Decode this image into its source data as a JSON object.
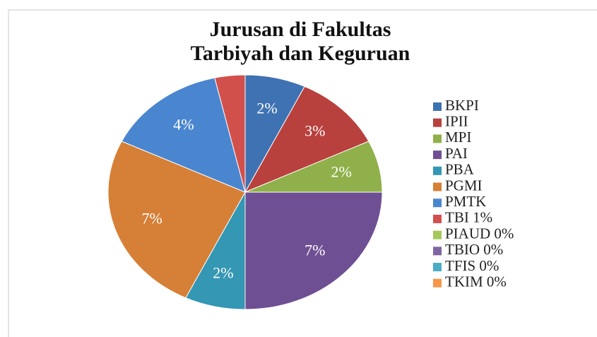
{
  "chart_data": {
    "type": "pie",
    "title": [
      "Jurusan di Fakultas",
      "Tarbiyah dan Keguruan"
    ],
    "categories": [
      "BKPI",
      "IPII",
      "MPI",
      "PAI",
      "PBA",
      "PGMI",
      "PMTK",
      "TBI 1%",
      "PIAUD 0%",
      "TBIO 0%",
      "TFIS 0%",
      "TKIM 0%"
    ],
    "values": [
      2,
      3,
      2,
      7,
      2,
      7,
      4,
      1,
      0,
      0,
      0,
      0
    ],
    "value_labels": [
      "2%",
      "3%",
      "2%",
      "7%",
      "2%",
      "7%",
      "4%",
      null,
      null,
      null,
      null,
      null
    ],
    "colors": [
      "#3f72b2",
      "#b8403d",
      "#8fb04a",
      "#6f4f93",
      "#3497b3",
      "#d67f36",
      "#4a86d0",
      "#d2504c",
      "#a5c85b",
      "#8064a2",
      "#4bacc6",
      "#f79646"
    ],
    "legend": "right"
  }
}
